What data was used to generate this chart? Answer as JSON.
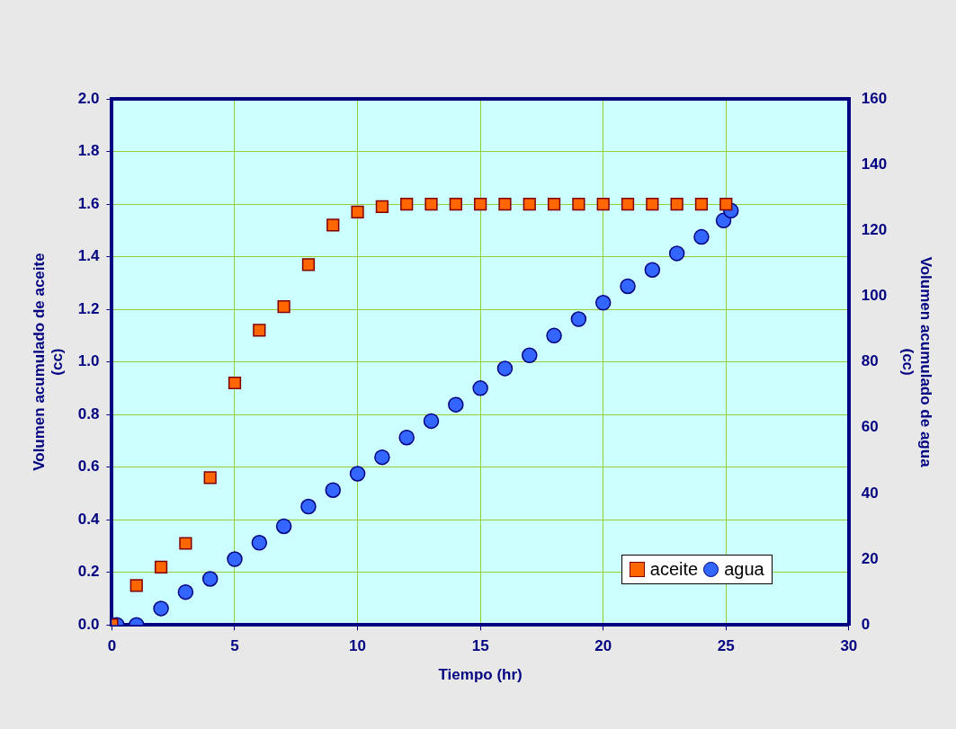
{
  "chart_data": {
    "type": "scatter",
    "xlabel": "Tiempo (hr)",
    "ylabel": "Volumen acumulado de aceite (cc)",
    "y2label": "Volumen acumulado de agua (cc)",
    "xlim": [
      0,
      30
    ],
    "xticks": [
      0,
      5,
      10,
      15,
      20,
      25,
      30
    ],
    "ylim": [
      0,
      2
    ],
    "yticks": [
      {
        "value": 0,
        "label": "0.0"
      },
      {
        "value": 0.2,
        "label": "0.2"
      },
      {
        "value": 0.4,
        "label": "0.4"
      },
      {
        "value": 0.6,
        "label": "0.6"
      },
      {
        "value": 0.8,
        "label": "0.8"
      },
      {
        "value": 1,
        "label": "1.0"
      },
      {
        "value": 1.2,
        "label": "1.2"
      },
      {
        "value": 1.4,
        "label": "1.4"
      },
      {
        "value": 1.6,
        "label": "1.6"
      },
      {
        "value": 1.8,
        "label": "1.8"
      },
      {
        "value": 2,
        "label": "2.0"
      }
    ],
    "y2lim": [
      0,
      160
    ],
    "y2ticks": [
      0,
      20,
      40,
      60,
      80,
      100,
      120,
      140,
      160
    ],
    "grid": true,
    "legend": "bottom right",
    "series": [
      {
        "name": "aceite",
        "color": "#ff6600",
        "marker": "square",
        "x": [
          0,
          1,
          2,
          3,
          4,
          5,
          6,
          7,
          8,
          9,
          10,
          11,
          12,
          13,
          14,
          15,
          16,
          17,
          18,
          19,
          20,
          21,
          22,
          23,
          24,
          25
        ],
        "values": [
          0,
          0.15,
          0.22,
          0.31,
          0.56,
          0.92,
          1.12,
          1.21,
          1.37,
          1.52,
          1.57,
          1.59,
          1.6,
          1.6,
          1.6,
          1.6,
          1.6,
          1.6,
          1.6,
          1.6,
          1.6,
          1.6,
          1.6,
          1.6,
          1.6,
          1.6
        ]
      },
      {
        "name": "agua",
        "color": "#3366ff",
        "marker": "circle",
        "axis": "y2",
        "x": [
          0,
          0.2,
          1,
          2,
          3,
          4,
          5,
          6,
          7,
          8,
          9,
          10,
          11,
          12,
          13,
          14,
          15,
          16,
          17,
          18,
          19,
          20,
          21,
          22,
          23,
          24,
          24.9,
          25.2
        ],
        "values": [
          0,
          0,
          0,
          5,
          10,
          14,
          20,
          25,
          30,
          36,
          41,
          46,
          51,
          57,
          62,
          67,
          72,
          78,
          82,
          88,
          93,
          98,
          103,
          108,
          113,
          118,
          123,
          126
        ]
      }
    ]
  }
}
